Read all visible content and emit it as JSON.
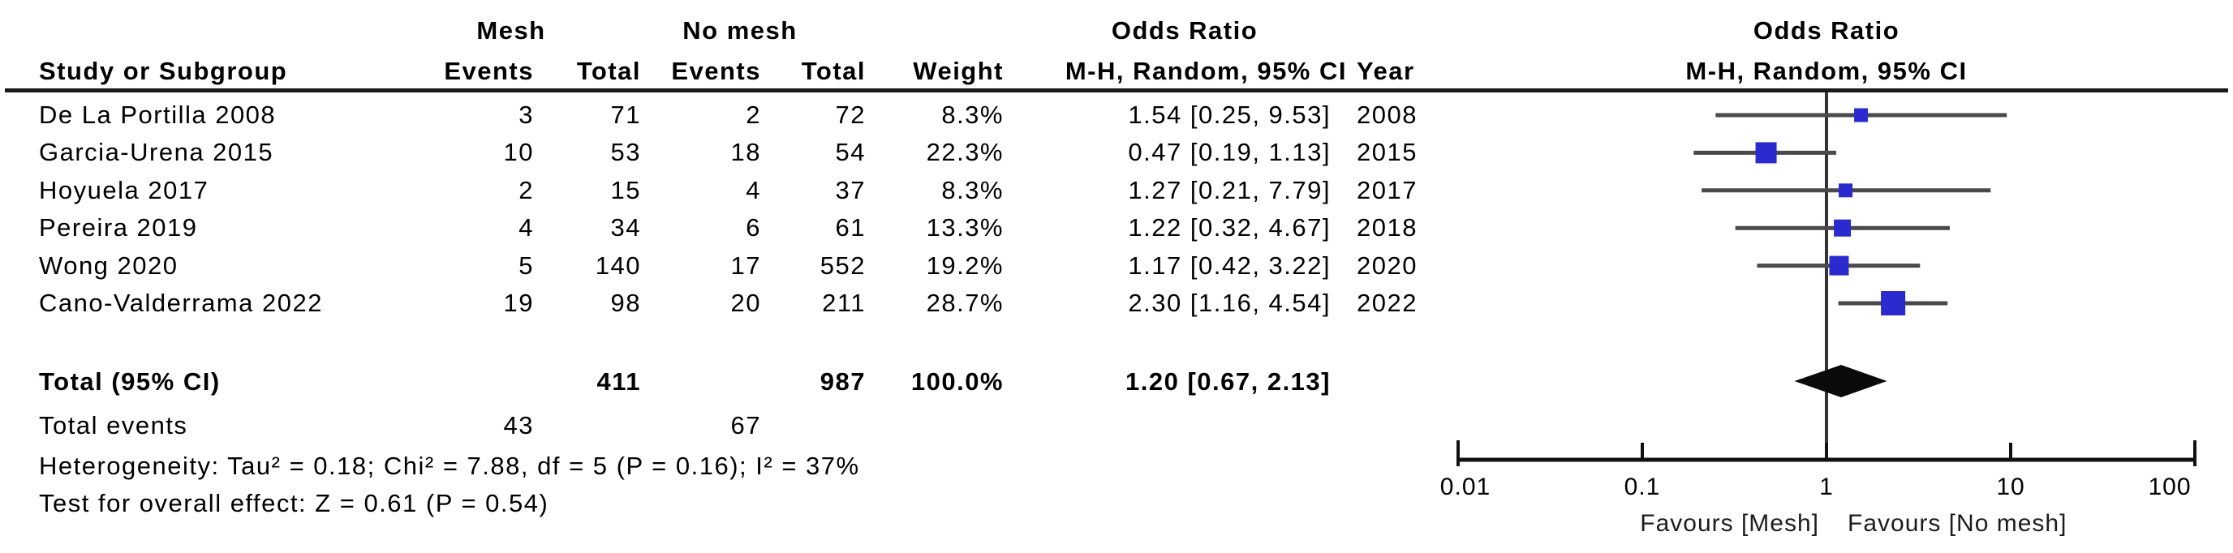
{
  "figure_title": "Forest plot: Mesh vs No mesh — Odds Ratio (M-H, Random, 95% CI)",
  "colors": {
    "background": "#ffffff",
    "text": "#000000",
    "header_rule": "#1a1a1a",
    "ci_line": "#4a4a4a",
    "reference_line": "#333333",
    "axis": "#111111",
    "effect_square": "#2A2ACF",
    "pooled_diamond": "#0a0a0a"
  },
  "table": {
    "groups": {
      "mesh": "Mesh",
      "no_mesh": "No mesh"
    },
    "or_title": "Odds Ratio",
    "or_subtitle": "M-H, Random, 95% CI",
    "columns": {
      "study": "Study or Subgroup",
      "events": "Events",
      "total": "Total",
      "weight": "Weight",
      "year": "Year"
    },
    "rows": [
      {
        "study": "De La Portilla 2008",
        "e1": "3",
        "t1": "71",
        "e2": "2",
        "t2": "72",
        "weight": "8.3%",
        "or_ci": "1.54 [0.25, 9.53]",
        "year": "2008"
      },
      {
        "study": "Garcia-Urena 2015",
        "e1": "10",
        "t1": "53",
        "e2": "18",
        "t2": "54",
        "weight": "22.3%",
        "or_ci": "0.47 [0.19, 1.13]",
        "year": "2015"
      },
      {
        "study": "Hoyuela 2017",
        "e1": "2",
        "t1": "15",
        "e2": "4",
        "t2": "37",
        "weight": "8.3%",
        "or_ci": "1.27 [0.21, 7.79]",
        "year": "2017"
      },
      {
        "study": "Pereira 2019",
        "e1": "4",
        "t1": "34",
        "e2": "6",
        "t2": "61",
        "weight": "13.3%",
        "or_ci": "1.22 [0.32, 4.67]",
        "year": "2018"
      },
      {
        "study": "Wong 2020",
        "e1": "5",
        "t1": "140",
        "e2": "17",
        "t2": "552",
        "weight": "19.2%",
        "or_ci": "1.17 [0.42, 3.22]",
        "year": "2020"
      },
      {
        "study": "Cano-Valderrama 2022",
        "e1": "19",
        "t1": "98",
        "e2": "20",
        "t2": "211",
        "weight": "28.7%",
        "or_ci": "2.30 [1.16, 4.54]",
        "year": "2022"
      }
    ],
    "total_row": {
      "label": "Total (95% CI)",
      "t1": "411",
      "t2": "987",
      "weight": "100.0%",
      "or_ci": "1.20 [0.67, 2.13]"
    },
    "total_events": {
      "label": "Total events",
      "e1": "43",
      "e2": "67"
    },
    "heterogeneity": "Heterogeneity: Tau² = 0.18; Chi² = 7.88, df = 5 (P = 0.16); I² = 37%",
    "overall_effect": "Test for overall effect: Z = 0.61 (P = 0.54)"
  },
  "plot": {
    "title": "Odds Ratio",
    "subtitle": "M-H, Random, 95% CI"
  },
  "chart_data": {
    "type": "forest",
    "effect_measure": "Odds Ratio (M-H, Random, 95% CI)",
    "x_scale": "log",
    "x_range": [
      0.01,
      100
    ],
    "x_ticks": [
      0.01,
      0.1,
      1,
      10,
      100
    ],
    "x_tick_labels": [
      "0.01",
      "0.1",
      "1",
      "10",
      "100"
    ],
    "reference_line": 1,
    "footer_left": "Favours [Mesh]",
    "footer_right": "Favours [No mesh]",
    "studies": [
      {
        "name": "De La Portilla 2008",
        "or": 1.54,
        "ci_low": 0.25,
        "ci_high": 9.53,
        "weight_pct": 8.3,
        "year": 2008
      },
      {
        "name": "Garcia-Urena 2015",
        "or": 0.47,
        "ci_low": 0.19,
        "ci_high": 1.13,
        "weight_pct": 22.3,
        "year": 2015
      },
      {
        "name": "Hoyuela 2017",
        "or": 1.27,
        "ci_low": 0.21,
        "ci_high": 7.79,
        "weight_pct": 8.3,
        "year": 2017
      },
      {
        "name": "Pereira 2019",
        "or": 1.22,
        "ci_low": 0.32,
        "ci_high": 4.67,
        "weight_pct": 13.3,
        "year": 2018
      },
      {
        "name": "Wong 2020",
        "or": 1.17,
        "ci_low": 0.42,
        "ci_high": 3.22,
        "weight_pct": 19.2,
        "year": 2020
      },
      {
        "name": "Cano-Valderrama 2022",
        "or": 2.3,
        "ci_low": 1.16,
        "ci_high": 4.54,
        "weight_pct": 28.7,
        "year": 2022
      }
    ],
    "pooled": {
      "label": "Total (95% CI)",
      "or": 1.2,
      "ci_low": 0.67,
      "ci_high": 2.13,
      "weight_pct": 100.0
    }
  }
}
